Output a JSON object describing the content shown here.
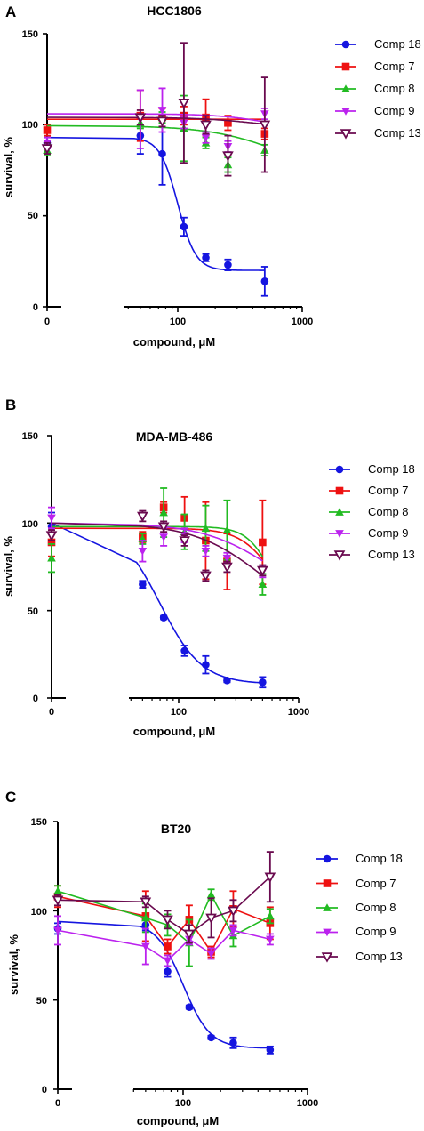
{
  "panels": [
    {
      "letter": "A",
      "chart_data": {
        "type": "scatter",
        "title": "HCC1806",
        "xlabel": "compound, μM",
        "ylabel": "survival, %",
        "xscale": "linear-from-0",
        "xlim": [
          0,
          1000
        ],
        "ylim": [
          0,
          150
        ],
        "xticks": [
          0,
          100,
          1000
        ],
        "xtick_labels": [
          "0",
          "100",
          "1000"
        ],
        "yticks": [
          0,
          50,
          100,
          150
        ],
        "ytick_labels": [
          "0",
          "50",
          "100",
          "150"
        ],
        "x": [
          0,
          50,
          75,
          112,
          168,
          253,
          500
        ],
        "legend_position": "right",
        "series": [
          {
            "name": "Comp 18",
            "color": "#1515e0",
            "marker": "circle",
            "values": [
              90,
              94,
              84,
              44,
              27,
              23,
              14
            ],
            "errors": [
              3,
              10,
              17,
              5,
              2,
              3,
              8
            ],
            "fit": {
              "top": 93,
              "bottom": 20,
              "ec50": 100,
              "hill": 6
            }
          },
          {
            "name": "Comp 7",
            "color": "#ee1111",
            "marker": "square",
            "values": [
              97,
              105,
              104,
              105,
              104,
              101,
              95
            ],
            "errors": [
              3,
              14,
              5,
              5,
              10,
              4,
              3
            ],
            "fit": {
              "top": 103,
              "bottom": 103,
              "ec50": 500,
              "hill": 1
            }
          },
          {
            "name": "Comp 8",
            "color": "#22bb22",
            "marker": "triangle-up",
            "values": [
              86,
              101,
              104,
              98,
              90,
              78,
              86
            ],
            "errors": [
              3,
              3,
              3,
              18,
              3,
              4,
              3
            ],
            "fit": {
              "top": 99.5,
              "bottom": 70,
              "ec50": 700,
              "hill": 1.5
            }
          },
          {
            "name": "Comp 9",
            "color": "#bb22ee",
            "marker": "triangle-down",
            "values": [
              90,
              103,
              108,
              101,
              93,
              88,
              106
            ],
            "errors": [
              3,
              16,
              12,
              3,
              3,
              3,
              3
            ],
            "fit": {
              "top": 106,
              "bottom": 95,
              "ec50": 600,
              "hill": 2
            }
          },
          {
            "name": "Comp 13",
            "color": "#6a0a4f",
            "marker": "triangle-down-open",
            "values": [
              87,
              104,
              102,
              112,
              100,
              83,
              100
            ],
            "errors": [
              3,
              4,
              3,
              33,
              5,
              11,
              26
            ],
            "fit": {
              "top": 104,
              "bottom": 98,
              "ec50": 400,
              "hill": 2
            }
          }
        ]
      }
    },
    {
      "letter": "B",
      "chart_data": {
        "type": "scatter",
        "title": "MDA-MB-486",
        "xlabel": "compound, μM",
        "ylabel": "survival, %",
        "xscale": "linear-from-0",
        "xlim": [
          0,
          1000
        ],
        "ylim": [
          0,
          150
        ],
        "xticks": [
          0,
          100,
          1000
        ],
        "xtick_labels": [
          "0",
          "100",
          "1000"
        ],
        "yticks": [
          0,
          50,
          100,
          150
        ],
        "ytick_labels": [
          "0",
          "50",
          "100",
          "150"
        ],
        "x": [
          0,
          50,
          75,
          112,
          168,
          253,
          500
        ],
        "legend_position": "right",
        "series": [
          {
            "name": "Comp 18",
            "color": "#1515e0",
            "marker": "circle",
            "values": [
              98,
              65,
              46,
              27,
              19,
              10,
              9
            ],
            "errors": [
              8,
              2,
              1,
              3,
              5,
              1,
              3
            ],
            "fit": {
              "top": 100,
              "bottom": 8,
              "ec50": 70,
              "hill": 2.5
            }
          },
          {
            "name": "Comp 7",
            "color": "#ee1111",
            "marker": "square",
            "values": [
              89,
              92,
              109,
              103,
              90,
              78,
              89
            ],
            "errors": [
              8,
              3,
              3,
              12,
              22,
              16,
              24
            ],
            "fit": {
              "top": 97,
              "bottom": 40,
              "ec50": 650,
              "hill": 3
            }
          },
          {
            "name": "Comp 8",
            "color": "#22bb22",
            "marker": "triangle-up",
            "values": [
              80,
              91,
              106,
              95,
              97,
              96,
              65
            ],
            "errors": [
              8,
              3,
              14,
              10,
              13,
              17,
              6
            ],
            "fit": {
              "top": 98,
              "bottom": 40,
              "ec50": 620,
              "hill": 4
            }
          },
          {
            "name": "Comp 9",
            "color": "#bb22ee",
            "marker": "triangle-down",
            "values": [
              103,
              84,
              92,
              93,
              84,
              80,
              72
            ],
            "errors": [
              6,
              6,
              5,
              4,
              3,
              3,
              3
            ],
            "fit": {
              "top": 100,
              "bottom": 50,
              "ec50": 600,
              "hill": 1.5
            }
          },
          {
            "name": "Comp 13",
            "color": "#6a0a4f",
            "marker": "triangle-down-open",
            "values": [
              93,
              104,
              98,
              90,
              70,
              75,
              73
            ],
            "errors": [
              3,
              3,
              3,
              3,
              3,
              3,
              3
            ],
            "fit": {
              "top": 100,
              "bottom": 40,
              "ec50": 500,
              "hill": 1.5
            }
          }
        ]
      }
    },
    {
      "letter": "C",
      "chart_data": {
        "type": "scatter",
        "title": "BT20",
        "xlabel": "compound, μM",
        "ylabel": "survival, %",
        "xscale": "linear-from-0",
        "xlim": [
          0,
          1000
        ],
        "ylim": [
          0,
          150
        ],
        "xticks": [
          0,
          100,
          1000
        ],
        "xtick_labels": [
          "0",
          "100",
          "1000"
        ],
        "yticks": [
          0,
          50,
          100,
          150
        ],
        "ytick_labels": [
          "0",
          "50",
          "100",
          "150"
        ],
        "x": [
          0,
          50,
          75,
          112,
          168,
          253,
          500
        ],
        "legend_position": "right",
        "series": [
          {
            "name": "Comp 18",
            "color": "#1515e0",
            "marker": "circle",
            "values": [
              90,
              92,
              66,
              46,
              29,
              26,
              22
            ],
            "errors": [
              3,
              3,
              3,
              1,
              1,
              3,
              2
            ],
            "fit": {
              "top": 94,
              "bottom": 23,
              "ec50": 100,
              "hill": 4
            }
          },
          {
            "name": "Comp 7",
            "color": "#ee1111",
            "marker": "square",
            "values": [
              108,
              97,
              80,
              95,
              77,
              101,
              93
            ],
            "errors": [
              6,
              14,
              4,
              8,
              3,
              10,
              9
            ],
            "connect": true
          },
          {
            "name": "Comp 8",
            "color": "#22bb22",
            "marker": "triangle-up",
            "values": [
              111,
              96,
              92,
              82,
              109,
              86,
              97
            ],
            "errors": [
              3,
              8,
              6,
              13,
              3,
              6,
              4
            ],
            "connect": true
          },
          {
            "name": "Comp 9",
            "color": "#bb22ee",
            "marker": "triangle-down",
            "values": [
              89,
              80,
              72,
              84,
              76,
              89,
              84
            ],
            "errors": [
              8,
              10,
              3,
              3,
              3,
              3,
              3
            ],
            "connect": true
          },
          {
            "name": "Comp 13",
            "color": "#6a0a4f",
            "marker": "triangle-down-open",
            "values": [
              106,
              105,
              95,
              87,
              96,
              100,
              119
            ],
            "errors": [
              3,
              3,
              5,
              5,
              11,
              6,
              14
            ],
            "connect": true
          }
        ]
      }
    }
  ]
}
